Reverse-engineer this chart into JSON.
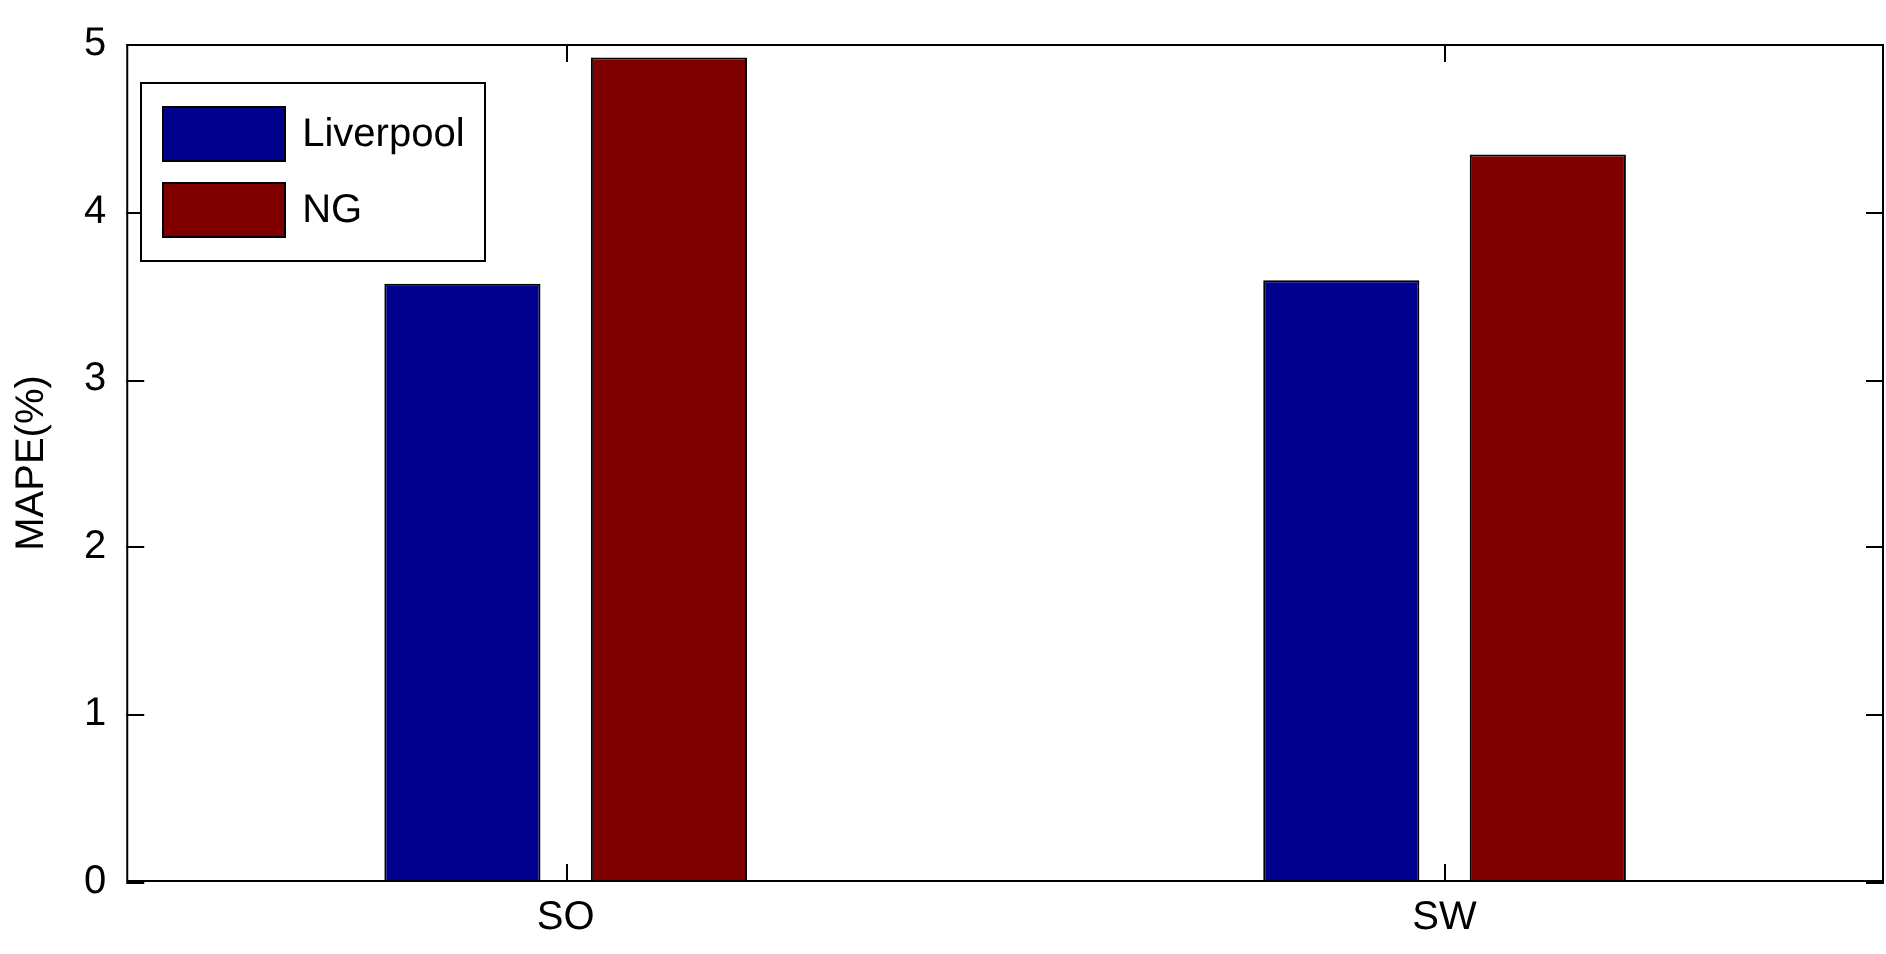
{
  "chart_data": {
    "type": "bar",
    "ylabel": "MAPE(%)",
    "categories": [
      "SO",
      "SW"
    ],
    "series": [
      {
        "name": "Liverpool",
        "color": "#00008f",
        "values": [
          3.57,
          3.59
        ]
      },
      {
        "name": "NG",
        "color": "#800000",
        "values": [
          4.92,
          4.34
        ]
      }
    ],
    "ylim": [
      0,
      5
    ],
    "yticks": [
      0,
      1,
      2,
      3,
      4,
      5
    ],
    "grid": false,
    "legend": "top left"
  }
}
